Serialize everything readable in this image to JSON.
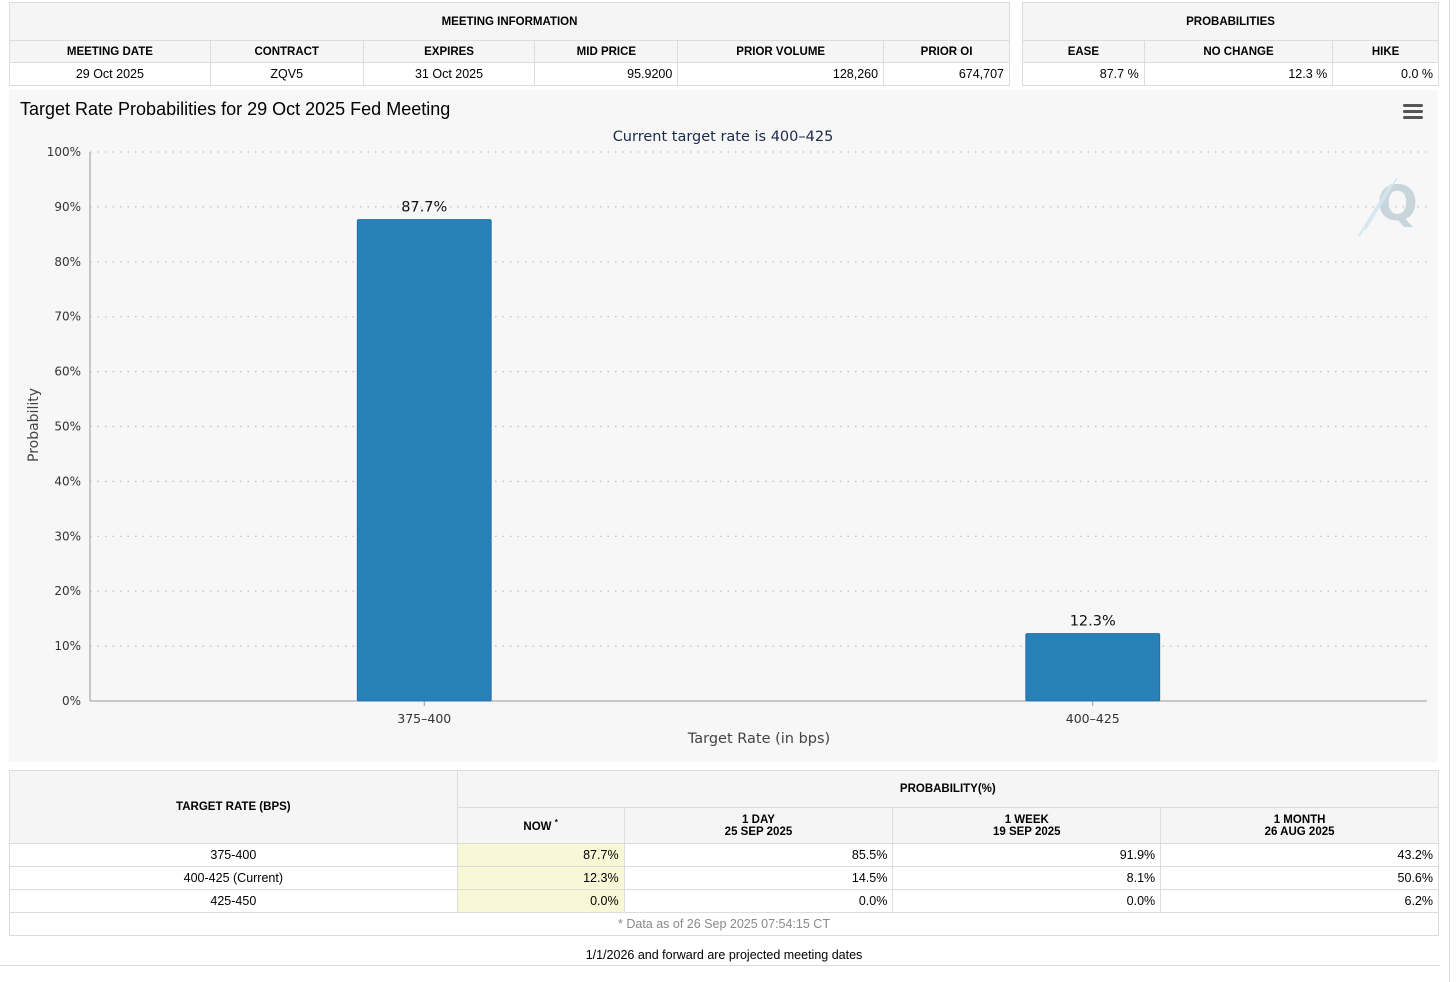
{
  "meeting_info": {
    "title": "MEETING INFORMATION",
    "headers": [
      "MEETING DATE",
      "CONTRACT",
      "EXPIRES",
      "MID PRICE",
      "PRIOR VOLUME",
      "PRIOR OI"
    ],
    "values": [
      "29 Oct 2025",
      "ZQV5",
      "31 Oct 2025",
      "95.9200",
      "128,260",
      "674,707"
    ]
  },
  "probabilities": {
    "title": "PROBABILITIES",
    "headers": [
      "EASE",
      "NO CHANGE",
      "HIKE"
    ],
    "values": [
      "87.7 %",
      "12.3 %",
      "0.0 %"
    ]
  },
  "chart": {
    "menu_icon": "hamburger-menu-icon",
    "watermark_icon": "q-logo-icon",
    "bar_color": "#2980b9"
  },
  "chart_data": {
    "type": "bar",
    "title": "Target Rate Probabilities for 29 Oct 2025 Fed Meeting",
    "subtitle": "Current target rate is 400–425",
    "categories": [
      "375–400",
      "400–425"
    ],
    "values": [
      87.7,
      12.3
    ],
    "data_labels": [
      "87.7%",
      "12.3%"
    ],
    "xlabel": "Target Rate (in bps)",
    "ylabel": "Probability",
    "ylim": [
      0,
      100
    ],
    "yticks": [
      "0%",
      "10%",
      "20%",
      "30%",
      "40%",
      "50%",
      "60%",
      "70%",
      "80%",
      "90%",
      "100%"
    ],
    "grid": true,
    "legend": "none"
  },
  "prob_table": {
    "col_target": "TARGET RATE (BPS)",
    "col_prob": "PROBABILITY(%)",
    "subcols": [
      {
        "line1": "NOW",
        "line2": ""
      },
      {
        "line1": "1 DAY",
        "line2": "25 SEP 2025"
      },
      {
        "line1": "1 WEEK",
        "line2": "19 SEP 2025"
      },
      {
        "line1": "1 MONTH",
        "line2": "26 AUG 2025"
      }
    ],
    "now_marker": "*",
    "rows": [
      {
        "rate": "375-400",
        "values": [
          "87.7%",
          "85.5%",
          "91.9%",
          "43.2%"
        ]
      },
      {
        "rate": "400-425 (Current)",
        "values": [
          "12.3%",
          "14.5%",
          "8.1%",
          "50.6%"
        ]
      },
      {
        "rate": "425-450",
        "values": [
          "0.0%",
          "0.0%",
          "0.0%",
          "6.2%"
        ]
      }
    ],
    "footnote": "* Data as of 26 Sep 2025 07:54:15 CT"
  },
  "projected_note": "1/1/2026 and forward are projected meeting dates"
}
